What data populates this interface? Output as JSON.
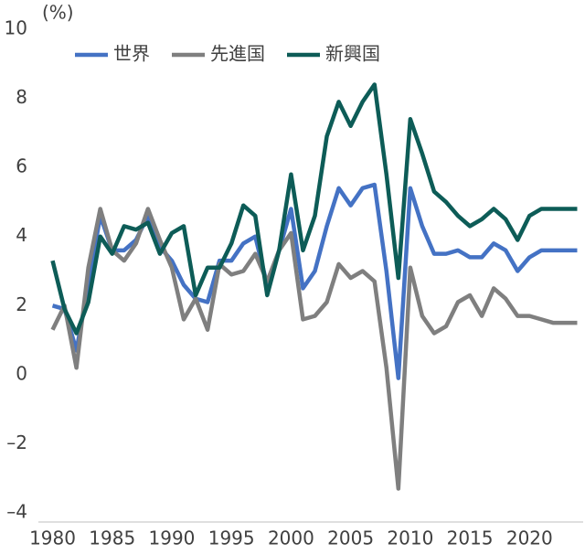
{
  "chart_data": {
    "type": "line",
    "unit_label": "(%)",
    "x": [
      1980,
      1981,
      1982,
      1983,
      1984,
      1985,
      1986,
      1987,
      1988,
      1989,
      1990,
      1991,
      1992,
      1993,
      1994,
      1995,
      1996,
      1997,
      1998,
      1999,
      2000,
      2001,
      2002,
      2003,
      2004,
      2005,
      2006,
      2007,
      2008,
      2009,
      2010,
      2011,
      2012,
      2013,
      2014,
      2015,
      2016,
      2017,
      2018,
      2019,
      2020,
      2021,
      2022,
      2023,
      2024
    ],
    "series": [
      {
        "name": "世界",
        "color": "#4472c4",
        "values": [
          2.0,
          1.9,
          0.7,
          2.6,
          4.6,
          3.6,
          3.6,
          3.9,
          4.6,
          3.7,
          3.3,
          2.6,
          2.2,
          2.1,
          3.3,
          3.3,
          3.8,
          4.0,
          2.6,
          3.6,
          4.8,
          2.5,
          3.0,
          4.3,
          5.4,
          4.9,
          5.4,
          5.5,
          3.0,
          -0.1,
          5.4,
          4.3,
          3.5,
          3.5,
          3.6,
          3.4,
          3.4,
          3.8,
          3.6,
          3.0,
          3.4,
          3.6,
          3.6,
          3.6,
          3.6
        ]
      },
      {
        "name": "先進国",
        "color": "#7f7f7f",
        "values": [
          1.3,
          2.0,
          0.2,
          3.1,
          4.8,
          3.6,
          3.3,
          3.8,
          4.8,
          3.9,
          3.1,
          1.6,
          2.2,
          1.3,
          3.2,
          2.9,
          3.0,
          3.5,
          2.7,
          3.6,
          4.1,
          1.6,
          1.7,
          2.1,
          3.2,
          2.8,
          3.0,
          2.7,
          0.2,
          -3.3,
          3.1,
          1.7,
          1.2,
          1.4,
          2.1,
          2.3,
          1.7,
          2.5,
          2.2,
          1.7,
          1.7,
          1.6,
          1.5,
          1.5,
          1.5
        ]
      },
      {
        "name": "新興国",
        "color": "#0d5c57",
        "values": [
          3.3,
          1.9,
          1.2,
          2.1,
          4.0,
          3.5,
          4.3,
          4.2,
          4.4,
          3.5,
          4.1,
          4.3,
          2.3,
          3.1,
          3.1,
          3.8,
          4.9,
          4.6,
          2.3,
          3.6,
          5.8,
          3.6,
          4.6,
          6.9,
          7.9,
          7.2,
          7.9,
          8.4,
          5.8,
          2.8,
          7.4,
          6.4,
          5.3,
          5.0,
          4.6,
          4.3,
          4.5,
          4.8,
          4.5,
          3.9,
          4.6,
          4.8,
          4.8,
          4.8,
          4.8
        ]
      }
    ],
    "xlim": [
      1979.5,
      2024.5
    ],
    "xticks": [
      1980,
      1985,
      1990,
      1995,
      2000,
      2005,
      2010,
      2015,
      2020
    ],
    "ylim": [
      -4,
      10
    ],
    "yticks": [
      {
        "value": -4,
        "label": "–4"
      },
      {
        "value": -2,
        "label": "–2"
      },
      0,
      2,
      4,
      6,
      8,
      10
    ],
    "legend": "top-left"
  }
}
